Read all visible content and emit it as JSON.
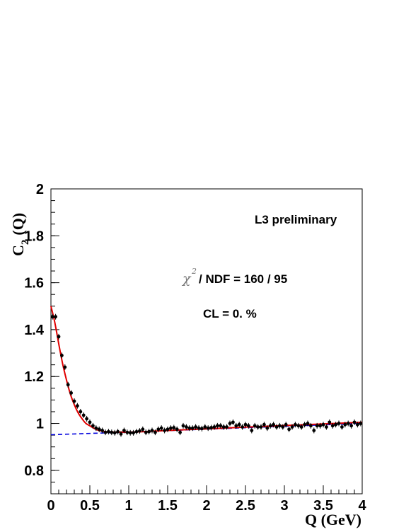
{
  "chart_data": {
    "type": "scatter",
    "title": "",
    "xlabel": "Q (GeV)",
    "ylabel": "C₂ (Q)",
    "ylabel_main": "C",
    "ylabel_sub": "2",
    "ylabel_rest": "(Q)",
    "xlim": [
      0,
      4
    ],
    "ylim": [
      0.7,
      2.0
    ],
    "x_ticks": [
      0,
      0.5,
      1,
      1.5,
      2,
      2.5,
      3,
      3.5,
      4
    ],
    "x_tick_labels": [
      "0",
      "0.5",
      "1",
      "1.5",
      "2",
      "2.5",
      "3",
      "3.5",
      "4"
    ],
    "y_ticks": [
      0.8,
      1.0,
      1.2,
      1.4,
      1.6,
      1.8,
      2.0
    ],
    "y_tick_labels": [
      "0.8",
      "1",
      "1.2",
      "1.4",
      "1.6",
      "1.8",
      "2"
    ],
    "grid": false,
    "annotations": {
      "experiment": "L3 preliminary",
      "chi_symbol": "χ",
      "chi_sup": "2",
      "chi_rest": "/ NDF = 160 / 95",
      "cl": "CL = 0. %"
    },
    "series": [
      {
        "kind": "points",
        "color": "#000000",
        "x": [
          0.02,
          0.06,
          0.1,
          0.14,
          0.18,
          0.22,
          0.26,
          0.3,
          0.34,
          0.38,
          0.42,
          0.46,
          0.5,
          0.54,
          0.58,
          0.62,
          0.66,
          0.7,
          0.74,
          0.78,
          0.82,
          0.86,
          0.9,
          0.94,
          0.98,
          1.02,
          1.06,
          1.1,
          1.14,
          1.18,
          1.22,
          1.26,
          1.3,
          1.34,
          1.38,
          1.42,
          1.46,
          1.5,
          1.54,
          1.58,
          1.62,
          1.66,
          1.7,
          1.74,
          1.78,
          1.82,
          1.86,
          1.9,
          1.94,
          1.98,
          2.02,
          2.06,
          2.1,
          2.14,
          2.18,
          2.22,
          2.26,
          2.3,
          2.34,
          2.38,
          2.42,
          2.46,
          2.5,
          2.54,
          2.58,
          2.62,
          2.66,
          2.7,
          2.74,
          2.78,
          2.82,
          2.86,
          2.9,
          2.94,
          2.98,
          3.02,
          3.06,
          3.1,
          3.14,
          3.18,
          3.22,
          3.26,
          3.3,
          3.34,
          3.38,
          3.42,
          3.46,
          3.5,
          3.54,
          3.58,
          3.62,
          3.66,
          3.7,
          3.74,
          3.78,
          3.82,
          3.86,
          3.9,
          3.94,
          3.98
        ],
        "y": [
          1.455,
          1.455,
          1.37,
          1.29,
          1.24,
          1.165,
          1.13,
          1.095,
          1.075,
          1.05,
          1.035,
          1.02,
          1.005,
          0.99,
          0.98,
          0.975,
          0.97,
          0.962,
          0.965,
          0.962,
          0.96,
          0.965,
          0.955,
          0.97,
          0.962,
          0.96,
          0.96,
          0.965,
          0.968,
          0.975,
          0.962,
          0.965,
          0.97,
          0.962,
          0.975,
          0.98,
          0.97,
          0.975,
          0.98,
          0.982,
          0.975,
          0.962,
          0.99,
          0.985,
          0.98,
          0.98,
          0.985,
          0.98,
          0.978,
          0.985,
          0.98,
          0.982,
          0.985,
          0.99,
          0.99,
          0.985,
          0.985,
          1.0,
          1.005,
          0.99,
          0.995,
          0.985,
          0.995,
          0.99,
          0.97,
          0.99,
          0.985,
          0.985,
          0.995,
          0.98,
          0.99,
          0.995,
          0.985,
          0.99,
          0.985,
          0.995,
          0.975,
          0.985,
          0.995,
          0.99,
          0.985,
          0.995,
          1.0,
          0.99,
          0.97,
          0.99,
          0.99,
          0.995,
          0.985,
          1.005,
          0.99,
          0.995,
          1.0,
          0.985,
          0.995,
          1.0,
          0.99,
          1.005,
          0.995,
          1.0
        ]
      },
      {
        "kind": "fit",
        "color": "#e00000",
        "x": [
          0.0,
          0.05,
          0.1,
          0.15,
          0.2,
          0.25,
          0.3,
          0.35,
          0.4,
          0.45,
          0.5,
          0.55,
          0.6,
          0.65,
          0.7,
          0.8,
          0.9,
          1.0,
          1.2,
          1.5,
          2.0,
          2.5,
          3.0,
          3.5,
          4.0
        ],
        "y": [
          1.5,
          1.43,
          1.34,
          1.255,
          1.185,
          1.125,
          1.08,
          1.045,
          1.02,
          1.0,
          0.99,
          0.98,
          0.972,
          0.968,
          0.965,
          0.963,
          0.963,
          0.963,
          0.965,
          0.97,
          0.977,
          0.984,
          0.991,
          0.998,
          1.005
        ]
      },
      {
        "kind": "baseline",
        "color": "#0000dd",
        "x": [
          0.0,
          1.0,
          4.0
        ],
        "y": [
          0.952,
          0.963,
          1.0
        ]
      }
    ]
  }
}
